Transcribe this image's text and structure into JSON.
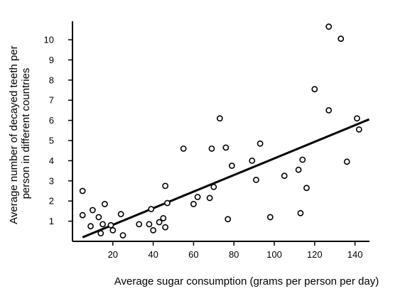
{
  "chart_data": {
    "type": "scatter",
    "title": "",
    "xlabel": "Average sugar consumption (grams per person per day)",
    "ylabel_line1": "Average number of decayed teeth per",
    "ylabel_line2": "person in different countries",
    "xlim": [
      0,
      150
    ],
    "ylim": [
      0,
      11
    ],
    "xticks": [
      20,
      40,
      60,
      80,
      100,
      120,
      140
    ],
    "xtick_labels": [
      "20",
      "40",
      "60",
      "80",
      "100",
      "120",
      "140"
    ],
    "yticks": [
      1,
      2,
      3,
      4,
      5,
      6,
      7,
      8,
      9,
      10
    ],
    "ytick_labels": [
      "1",
      "2",
      "3",
      "4",
      "5",
      "6",
      "7",
      "8",
      "9",
      "10"
    ],
    "grid": false,
    "legend": "none",
    "marker": "open-circle",
    "color": "#000000",
    "points": [
      {
        "x": 5,
        "y": 2.5
      },
      {
        "x": 5,
        "y": 1.3
      },
      {
        "x": 9,
        "y": 0.75
      },
      {
        "x": 10,
        "y": 1.55
      },
      {
        "x": 13,
        "y": 1.2
      },
      {
        "x": 14,
        "y": 0.4
      },
      {
        "x": 15,
        "y": 0.85
      },
      {
        "x": 16,
        "y": 1.85
      },
      {
        "x": 19,
        "y": 0.8
      },
      {
        "x": 20,
        "y": 0.55
      },
      {
        "x": 24,
        "y": 1.35
      },
      {
        "x": 25,
        "y": 0.3
      },
      {
        "x": 33,
        "y": 0.85
      },
      {
        "x": 38,
        "y": 0.85
      },
      {
        "x": 39,
        "y": 1.6
      },
      {
        "x": 40,
        "y": 0.55
      },
      {
        "x": 43,
        "y": 0.95
      },
      {
        "x": 45,
        "y": 1.15
      },
      {
        "x": 46,
        "y": 0.7
      },
      {
        "x": 46,
        "y": 2.75
      },
      {
        "x": 47,
        "y": 1.9
      },
      {
        "x": 55,
        "y": 4.6
      },
      {
        "x": 60,
        "y": 1.85
      },
      {
        "x": 62,
        "y": 2.2
      },
      {
        "x": 68,
        "y": 2.15
      },
      {
        "x": 69,
        "y": 4.6
      },
      {
        "x": 70,
        "y": 2.7
      },
      {
        "x": 73,
        "y": 6.1
      },
      {
        "x": 76,
        "y": 4.65
      },
      {
        "x": 77,
        "y": 1.1
      },
      {
        "x": 79,
        "y": 3.75
      },
      {
        "x": 89,
        "y": 4.0
      },
      {
        "x": 91,
        "y": 3.05
      },
      {
        "x": 93,
        "y": 4.85
      },
      {
        "x": 98,
        "y": 1.2
      },
      {
        "x": 105,
        "y": 3.25
      },
      {
        "x": 112,
        "y": 3.55
      },
      {
        "x": 113,
        "y": 1.4
      },
      {
        "x": 114,
        "y": 4.05
      },
      {
        "x": 116,
        "y": 2.65
      },
      {
        "x": 120,
        "y": 7.55
      },
      {
        "x": 127,
        "y": 10.65
      },
      {
        "x": 127,
        "y": 6.5
      },
      {
        "x": 133,
        "y": 10.05
      },
      {
        "x": 136,
        "y": 3.95
      },
      {
        "x": 141,
        "y": 6.1
      },
      {
        "x": 142,
        "y": 5.55
      }
    ],
    "trendline": {
      "x": [
        5,
        147
      ],
      "y": [
        0.2,
        6.05
      ]
    }
  }
}
